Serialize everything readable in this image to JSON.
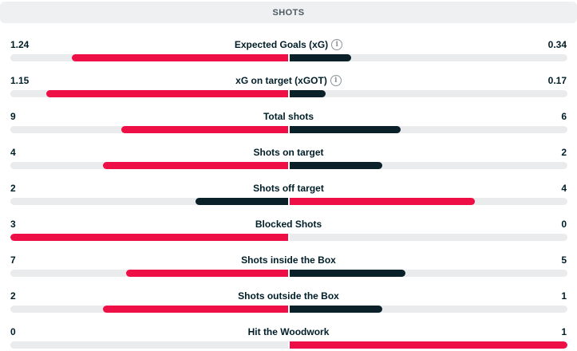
{
  "section": {
    "title": "SHOTS"
  },
  "colors": {
    "leading_team_bar": "#ee0f47",
    "trailing_team_bar": "#0b2129",
    "bar_track": "#e9ebec",
    "header_bg": "#eef0f1"
  },
  "stats": [
    {
      "name": "Expected Goals (xG)",
      "home": "1.24",
      "away": "0.34",
      "has_info_icon": true,
      "info_icon": "info-icon",
      "home_fill": 0.78,
      "away_fill": 0.22
    },
    {
      "name": "xG on target (xGOT)",
      "home": "1.15",
      "away": "0.17",
      "has_info_icon": true,
      "info_icon": "info-icon",
      "home_fill": 0.87,
      "away_fill": 0.13
    },
    {
      "name": "Total shots",
      "home": "9",
      "away": "6",
      "has_info_icon": false,
      "home_fill": 0.6,
      "away_fill": 0.4
    },
    {
      "name": "Shots on target",
      "home": "4",
      "away": "2",
      "has_info_icon": false,
      "home_fill": 0.667,
      "away_fill": 0.333
    },
    {
      "name": "Shots off target",
      "home": "2",
      "away": "4",
      "has_info_icon": false,
      "home_fill": 0.333,
      "away_fill": 0.667
    },
    {
      "name": "Blocked Shots",
      "home": "3",
      "away": "0",
      "has_info_icon": false,
      "home_fill": 1.0,
      "away_fill": 0.0
    },
    {
      "name": "Shots inside the Box",
      "home": "7",
      "away": "5",
      "has_info_icon": false,
      "home_fill": 0.583,
      "away_fill": 0.417
    },
    {
      "name": "Shots outside the Box",
      "home": "2",
      "away": "1",
      "has_info_icon": false,
      "home_fill": 0.667,
      "away_fill": 0.333
    },
    {
      "name": "Hit the Woodwork",
      "home": "0",
      "away": "1",
      "has_info_icon": false,
      "home_fill": 0.0,
      "away_fill": 1.0
    }
  ]
}
